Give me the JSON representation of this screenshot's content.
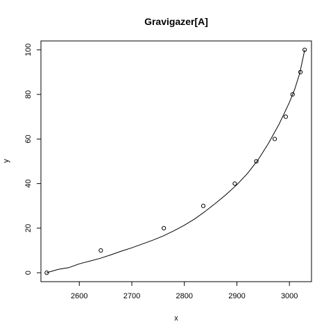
{
  "chart_data": {
    "type": "scatter",
    "title": "Gravigazer[A]",
    "xlabel": "x",
    "ylabel": "y",
    "xlim": [
      2527,
      3042
    ],
    "ylim": [
      -4,
      104
    ],
    "grid": false,
    "legend": "none",
    "x_ticks": [
      2600,
      2700,
      2800,
      2900,
      3000
    ],
    "y_ticks": [
      0,
      20,
      40,
      60,
      80,
      100
    ],
    "points": {
      "x": [
        2538,
        2641,
        2761,
        2836,
        2896,
        2937,
        2972,
        2993,
        3006,
        3021,
        3029
      ],
      "y": [
        0,
        10,
        20,
        30,
        40,
        50,
        60,
        70,
        80,
        90,
        100
      ]
    },
    "fit_line": {
      "x": [
        2538,
        2560,
        2580,
        2600,
        2620,
        2640,
        2660,
        2680,
        2700,
        2720,
        2740,
        2760,
        2780,
        2800,
        2820,
        2840,
        2860,
        2880,
        2900,
        2920,
        2940,
        2960,
        2980,
        2990,
        3000,
        3010,
        3020,
        3029
      ],
      "y": [
        0,
        1.5,
        2.3,
        4.0,
        5.2,
        6.5,
        8.0,
        9.7,
        11.2,
        12.9,
        14.6,
        16.5,
        18.8,
        21.3,
        24.2,
        27.6,
        31.3,
        35.2,
        39.5,
        44.5,
        50.6,
        58.0,
        66.5,
        71.4,
        76.5,
        82.3,
        89.8,
        100
      ]
    }
  }
}
